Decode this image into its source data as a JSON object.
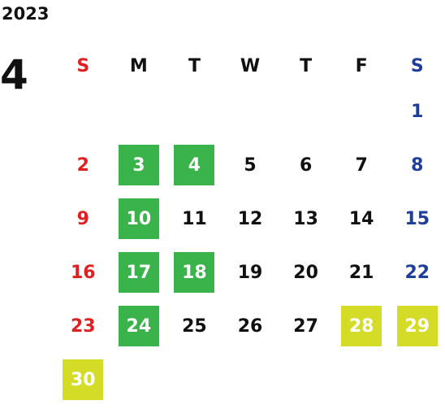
{
  "year": "2023",
  "month": "4",
  "weekdays": [
    "S",
    "M",
    "T",
    "W",
    "T",
    "F",
    "S"
  ],
  "weeks": [
    [
      "",
      "",
      "",
      "",
      "",
      "",
      "1"
    ],
    [
      "2",
      "3",
      "4",
      "5",
      "6",
      "7",
      "8"
    ],
    [
      "9",
      "10",
      "11",
      "12",
      "13",
      "14",
      "15"
    ],
    [
      "16",
      "17",
      "18",
      "19",
      "20",
      "21",
      "22"
    ],
    [
      "23",
      "24",
      "25",
      "26",
      "27",
      "28",
      "29"
    ],
    [
      "30",
      "",
      "",
      "",
      "",
      "",
      ""
    ]
  ],
  "highlighted_green": [
    "3",
    "4",
    "10",
    "17",
    "18",
    "24"
  ],
  "highlighted_yellow": [
    "28",
    "29",
    "30"
  ],
  "colors": {
    "sunday": "#e02020",
    "saturday": "#1f3d9a",
    "green_highlight": "#3ab34a",
    "yellow_highlight": "#d4dc27"
  }
}
